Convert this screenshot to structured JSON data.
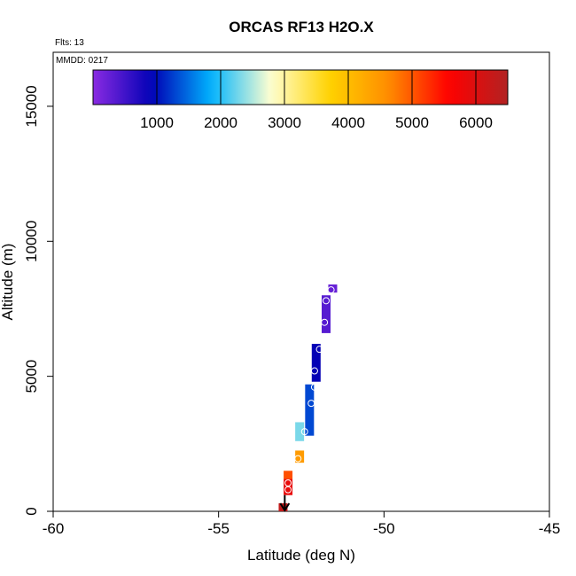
{
  "chart_data": {
    "type": "scatter",
    "title": "ORCAS RF13 H2O.X",
    "annotations": {
      "flights": "Flts: 13",
      "date": "MMDD: 0217"
    },
    "xlabel": "Latitude (deg N)",
    "ylabel": "Altitude (m)",
    "xlim": [
      -60,
      -45
    ],
    "ylim": [
      0,
      17000
    ],
    "x_ticks": [
      -60,
      -55,
      -50,
      -45
    ],
    "x_tick_labels": [
      "-60",
      "-55",
      "-50",
      "-45"
    ],
    "y_ticks": [
      0,
      5000,
      10000,
      15000
    ],
    "y_tick_labels": [
      "0",
      "5000",
      "10000",
      "15000"
    ],
    "grid": false,
    "colorbar": {
      "placement": "top",
      "range": [
        0,
        6500
      ],
      "ticks": [
        1000,
        2000,
        3000,
        4000,
        5000,
        6000
      ],
      "tick_labels": [
        "1000",
        "2000",
        "3000",
        "4000",
        "5000",
        "6000"
      ],
      "colors": [
        "#8a2be2",
        "#0000b4",
        "#00b4ff",
        "#ffffd0",
        "#ffd200",
        "#ff8c00",
        "#ff0000",
        "#b22222"
      ]
    },
    "segments": [
      {
        "lat": -53.05,
        "alt0": 0,
        "alt1": 300,
        "value": 6300
      },
      {
        "lat": -52.9,
        "alt0": 600,
        "alt1": 1200,
        "value": 5850
      },
      {
        "lat": -52.9,
        "alt0": 1200,
        "alt1": 1500,
        "value": 5050
      },
      {
        "lat": -52.55,
        "alt0": 1800,
        "alt1": 2250,
        "value": 4450
      },
      {
        "lat": -52.55,
        "alt0": 2600,
        "alt1": 3300,
        "value": 2300
      },
      {
        "lat": -52.25,
        "alt0": 2800,
        "alt1": 4700,
        "value": 1300
      },
      {
        "lat": -52.05,
        "alt0": 4800,
        "alt1": 6200,
        "value": 900
      },
      {
        "lat": -51.75,
        "alt0": 6600,
        "alt1": 8000,
        "value": 350
      },
      {
        "lat": -51.55,
        "alt0": 8100,
        "alt1": 8400,
        "value": 250
      }
    ],
    "points": [
      {
        "lat": -52.9,
        "alt": 800
      },
      {
        "lat": -52.9,
        "alt": 1050
      },
      {
        "lat": -52.6,
        "alt": 1950
      },
      {
        "lat": -52.4,
        "alt": 2950
      },
      {
        "lat": -52.2,
        "alt": 4000
      },
      {
        "lat": -52.1,
        "alt": 4600
      },
      {
        "lat": -52.1,
        "alt": 5200
      },
      {
        "lat": -51.95,
        "alt": 6000
      },
      {
        "lat": -51.8,
        "alt": 7000
      },
      {
        "lat": -51.75,
        "alt": 7800
      },
      {
        "lat": -51.6,
        "alt": 8200
      }
    ],
    "end_arrow": {
      "lat": -53.0,
      "alt_from": 600,
      "alt_to": 0
    }
  }
}
